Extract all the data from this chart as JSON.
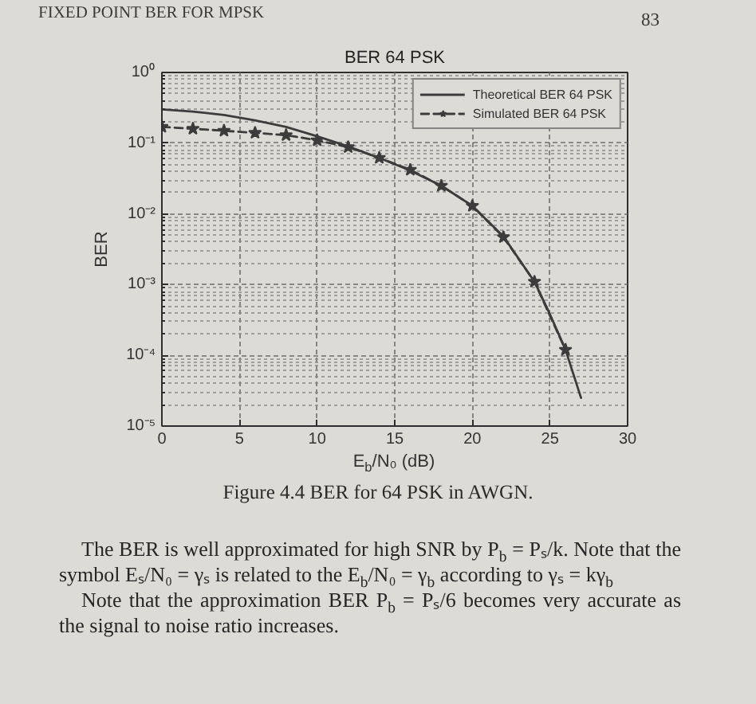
{
  "chart_data": {
    "type": "line",
    "title": "BER 64 PSK",
    "xlabel": "E$_{b}$/N₀ (dB)",
    "ylabel": "BER",
    "xlim": [
      0,
      30
    ],
    "xticks": [
      0,
      5,
      10,
      15,
      20,
      25,
      30
    ],
    "ylim": [
      1e-05,
      1
    ],
    "yticks": [
      {
        "value": 1e-05,
        "label": "10⁻⁵"
      },
      {
        "value": 0.0001,
        "label": "10⁻⁴"
      },
      {
        "value": 0.001,
        "label": "10⁻³"
      },
      {
        "value": 0.01,
        "label": "10⁻²"
      },
      {
        "value": 0.1,
        "label": "10⁻¹"
      },
      {
        "value": 1,
        "label": "10⁰"
      }
    ],
    "log": "y",
    "grid": true,
    "legend": "top right",
    "series": [
      {
        "name": "Theoretical BER 64 PSK",
        "color": "#3c3c3c",
        "line_style": "solid",
        "x": [
          0,
          2,
          4,
          6,
          8,
          10,
          12,
          14,
          16,
          18,
          20,
          22,
          24,
          25,
          26,
          27
        ],
        "values": [
          0.3,
          0.28,
          0.25,
          0.21,
          0.17,
          0.125,
          0.09,
          0.062,
          0.041,
          0.025,
          0.013,
          0.0048,
          0.0011,
          0.00038,
          0.00012,
          2.5e-05
        ]
      },
      {
        "name": "Simulated BER 64 PSK",
        "color": "#3c3c3c",
        "line_style": "dashed",
        "marker": "star",
        "x": [
          0,
          2,
          4,
          6,
          8,
          10,
          12,
          14,
          16,
          18,
          20,
          22,
          24,
          26
        ],
        "values": [
          0.17,
          0.16,
          0.15,
          0.14,
          0.13,
          0.11,
          0.088,
          0.062,
          0.042,
          0.025,
          0.013,
          0.0047,
          0.0011,
          0.00012
        ]
      }
    ],
    "annotations": [
      "FIXED POINT BER FOR MPSK",
      "83",
      "Figure 4.4 BER for 64 PSK in AWGN.",
      "The BER is well approximated for high SNR by P$_{b}$ = Pₛ/k. Note that the symbol Eₛ/N₀ = γₛ is related to the E$_{b}$/N₀ = γ$_{b}$ according to γₛ = kγ$_{b}$",
      "Note that the approximation BER P$_{b}$ = Pₛ/6 becomes very accurate as the signal to noise ratio increases."
    ]
  }
}
